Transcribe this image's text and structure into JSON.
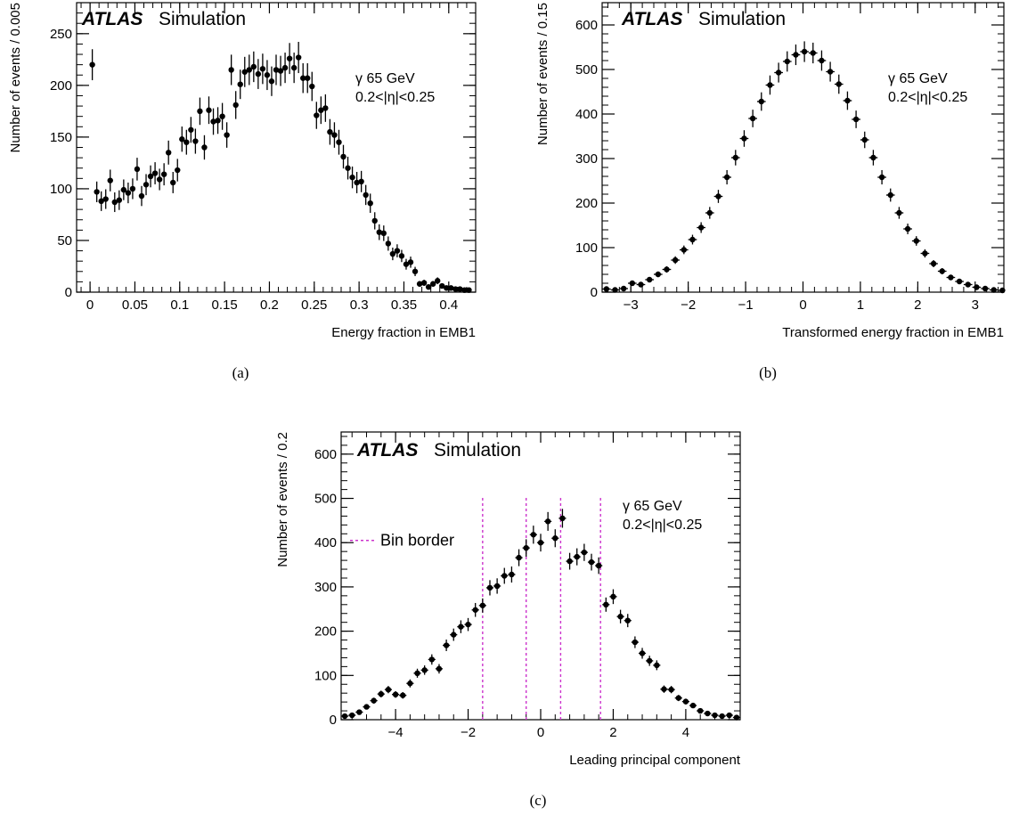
{
  "chart_data": [
    {
      "type": "scatter",
      "caption": "(a)",
      "experiment": "ATLAS",
      "experiment_suffix": "Simulation",
      "annotations": [
        "γ 65 GeV",
        "0.2<|η|<0.25"
      ],
      "xlabel": "Energy fraction in EMB1",
      "ylabel": "Number of events / 0.005",
      "xlim": [
        -0.015,
        0.43
      ],
      "ylim": [
        0,
        280
      ],
      "xticks": [
        0,
        0.05,
        0.1,
        0.15,
        0.2,
        0.25,
        0.3,
        0.35,
        0.4
      ],
      "xtick_labels": [
        "0",
        "0.05",
        "0.1",
        "0.15",
        "0.2",
        "0.25",
        "0.3",
        "0.35",
        "0.4"
      ],
      "yticks": [
        0,
        50,
        100,
        150,
        200,
        250
      ],
      "ytick_labels": [
        "0",
        "50",
        "100",
        "150",
        "200",
        "250"
      ],
      "bin_width": 0.005,
      "x": [
        0.0025,
        0.0075,
        0.0125,
        0.0175,
        0.0225,
        0.0275,
        0.0325,
        0.0375,
        0.0425,
        0.0475,
        0.0525,
        0.0575,
        0.0625,
        0.0675,
        0.0725,
        0.0775,
        0.0825,
        0.0875,
        0.0925,
        0.0975,
        0.1025,
        0.1075,
        0.1125,
        0.1175,
        0.1225,
        0.1275,
        0.1325,
        0.1375,
        0.1425,
        0.1475,
        0.1525,
        0.1575,
        0.1625,
        0.1675,
        0.1725,
        0.1775,
        0.1825,
        0.1875,
        0.1925,
        0.1975,
        0.2025,
        0.2075,
        0.2125,
        0.2175,
        0.2225,
        0.2275,
        0.2325,
        0.2375,
        0.2425,
        0.2475,
        0.2525,
        0.2575,
        0.2625,
        0.2675,
        0.2725,
        0.2775,
        0.2825,
        0.2875,
        0.2925,
        0.2975,
        0.3025,
        0.3075,
        0.3125,
        0.3175,
        0.3225,
        0.3275,
        0.3325,
        0.3375,
        0.3425,
        0.3475,
        0.3525,
        0.3575,
        0.3625,
        0.3675,
        0.3725,
        0.3775,
        0.3825,
        0.3875,
        0.3925,
        0.3975,
        0.4025,
        0.4075,
        0.4125,
        0.4175,
        0.4225
      ],
      "values": [
        220,
        97,
        88,
        90,
        108,
        87,
        89,
        99,
        96,
        100,
        119,
        93,
        104,
        112,
        115,
        109,
        114,
        135,
        106,
        118,
        148,
        145,
        157,
        146,
        175,
        140,
        176,
        165,
        166,
        170,
        152,
        215,
        181,
        201,
        213,
        215,
        218,
        211,
        216,
        210,
        204,
        215,
        214,
        217,
        226,
        217,
        227,
        207,
        207,
        199,
        171,
        176,
        178,
        155,
        152,
        145,
        131,
        120,
        111,
        106,
        107,
        94,
        86,
        69,
        58,
        57,
        47,
        37,
        40,
        35,
        27,
        29,
        20,
        8,
        9,
        5,
        8,
        11,
        6,
        4,
        4,
        3,
        3,
        2,
        2
      ],
      "errors": [
        15,
        10,
        9.5,
        9.5,
        10.5,
        9.5,
        9.5,
        10,
        10,
        10,
        11,
        9.7,
        10.2,
        10.6,
        10.7,
        10.4,
        10.7,
        11.6,
        10.3,
        10.9,
        12.2,
        12,
        12.5,
        12.1,
        13.2,
        11.8,
        13.3,
        12.8,
        12.9,
        13,
        12.3,
        14.7,
        13.5,
        14.2,
        14.6,
        14.7,
        14.8,
        14.5,
        14.7,
        14.5,
        14.3,
        14.7,
        14.6,
        14.7,
        15,
        14.7,
        15.1,
        14.4,
        14.4,
        14.1,
        13.1,
        13.3,
        13.3,
        12.4,
        12.3,
        12,
        11.4,
        11,
        10.5,
        10.3,
        10.3,
        9.7,
        9.3,
        8.3,
        7.6,
        7.5,
        6.9,
        6.1,
        6.3,
        5.9,
        5.2,
        5.4,
        4.5,
        2.8,
        3,
        2.2,
        2.8,
        3.3,
        2.4,
        2,
        2,
        1.7,
        1.7,
        1.4,
        1.4
      ]
    },
    {
      "type": "scatter",
      "caption": "(b)",
      "experiment": "ATLAS",
      "experiment_suffix": "Simulation",
      "annotations": [
        "γ 65 GeV",
        "0.2<|η|<0.25"
      ],
      "xlabel": "Transformed energy fraction in EMB1",
      "ylabel": "Number of events / 0.15",
      "xlim": [
        -3.5,
        3.5
      ],
      "ylim": [
        0,
        650
      ],
      "xticks": [
        -3,
        -2,
        -1,
        0,
        1,
        2,
        3
      ],
      "xtick_labels": [
        "−3",
        "−2",
        "−1",
        "0",
        "1",
        "2",
        "3"
      ],
      "yticks": [
        0,
        100,
        200,
        300,
        400,
        500,
        600
      ],
      "ytick_labels": [
        "0",
        "100",
        "200",
        "300",
        "400",
        "500",
        "600"
      ],
      "bin_width": 0.15,
      "x": [
        -3.425,
        -3.275,
        -3.125,
        -2.975,
        -2.825,
        -2.675,
        -2.525,
        -2.375,
        -2.225,
        -2.075,
        -1.925,
        -1.775,
        -1.625,
        -1.475,
        -1.325,
        -1.175,
        -1.025,
        -0.875,
        -0.725,
        -0.575,
        -0.425,
        -0.275,
        -0.125,
        0.025,
        0.175,
        0.325,
        0.475,
        0.625,
        0.775,
        0.925,
        1.075,
        1.225,
        1.375,
        1.525,
        1.675,
        1.825,
        1.975,
        2.125,
        2.275,
        2.425,
        2.575,
        2.725,
        2.875,
        3.025,
        3.175,
        3.325,
        3.475
      ],
      "values": [
        7,
        5,
        8,
        20,
        17,
        28,
        40,
        51,
        72,
        95,
        118,
        145,
        178,
        215,
        258,
        302,
        345,
        390,
        428,
        465,
        493,
        518,
        533,
        540,
        537,
        520,
        495,
        467,
        430,
        388,
        342,
        302,
        258,
        218,
        178,
        142,
        115,
        87,
        64,
        47,
        33,
        24,
        17,
        11,
        8,
        5,
        4
      ],
      "errors": [
        2.6,
        2.2,
        2.8,
        4.5,
        4.1,
        5.3,
        6.3,
        7.1,
        8.5,
        9.7,
        10.9,
        12,
        13.3,
        14.7,
        16.1,
        17.4,
        18.6,
        19.7,
        20.7,
        21.6,
        22.2,
        22.8,
        23.1,
        23.2,
        23.2,
        22.8,
        22.2,
        21.6,
        20.7,
        19.7,
        18.5,
        17.4,
        16.1,
        14.8,
        13.3,
        11.9,
        10.7,
        9.3,
        8,
        6.9,
        5.7,
        4.9,
        4.1,
        3.3,
        2.8,
        2.2,
        2
      ]
    },
    {
      "type": "scatter",
      "caption": "(c)",
      "experiment": "ATLAS",
      "experiment_suffix": "Simulation",
      "annotations": [
        "γ 65 GeV",
        "0.2<|η|<0.25"
      ],
      "legend": [
        {
          "label": "Bin border",
          "style": "dashed",
          "color": "#cc33cc"
        }
      ],
      "xlabel": "Leading principal component",
      "ylabel": "Number of events / 0.2",
      "xlim": [
        -5.5,
        5.5
      ],
      "ylim": [
        0,
        650
      ],
      "xticks": [
        -4,
        -2,
        0,
        2,
        4
      ],
      "xtick_labels": [
        "−4",
        "−2",
        "0",
        "2",
        "4"
      ],
      "yticks": [
        0,
        100,
        200,
        300,
        400,
        500,
        600
      ],
      "ytick_labels": [
        "0",
        "100",
        "200",
        "300",
        "400",
        "500",
        "600"
      ],
      "bin_borders": [
        -1.6,
        -0.4,
        0.55,
        1.65
      ],
      "bin_width": 0.2,
      "x": [
        -5.4,
        -5.2,
        -5.0,
        -4.8,
        -4.6,
        -4.4,
        -4.2,
        -4.0,
        -3.8,
        -3.6,
        -3.4,
        -3.2,
        -3.0,
        -2.8,
        -2.6,
        -2.4,
        -2.2,
        -2.0,
        -1.8,
        -1.6,
        -1.4,
        -1.2,
        -1.0,
        -0.8,
        -0.6,
        -0.4,
        -0.2,
        0.0,
        0.2,
        0.4,
        0.6,
        0.8,
        1.0,
        1.2,
        1.4,
        1.6,
        1.8,
        2.0,
        2.2,
        2.4,
        2.6,
        2.8,
        3.0,
        3.2,
        3.4,
        3.6,
        3.8,
        4.0,
        4.2,
        4.4,
        4.6,
        4.8,
        5.0,
        5.2,
        5.4
      ],
      "values": [
        8,
        10,
        17,
        29,
        43,
        58,
        68,
        57,
        55,
        82,
        105,
        112,
        136,
        115,
        168,
        192,
        210,
        215,
        248,
        258,
        298,
        302,
        325,
        328,
        366,
        388,
        418,
        400,
        448,
        410,
        455,
        358,
        368,
        378,
        356,
        348,
        260,
        278,
        233,
        224,
        175,
        150,
        133,
        123,
        69,
        68,
        49,
        41,
        32,
        20,
        14,
        10,
        8,
        10,
        5
      ],
      "errors": [
        2.8,
        3.2,
        4.1,
        5.4,
        6.6,
        7.6,
        8.2,
        7.5,
        7.4,
        9.1,
        10.2,
        10.6,
        11.7,
        10.7,
        13,
        13.9,
        14.5,
        14.7,
        15.7,
        16.1,
        17.3,
        17.4,
        18,
        18.1,
        19.1,
        19.7,
        20.4,
        20,
        21.2,
        20.2,
        21.3,
        18.9,
        19.2,
        19.4,
        18.9,
        18.7,
        16.1,
        16.7,
        15.3,
        15,
        13.2,
        12.2,
        11.5,
        11.1,
        8.3,
        8.2,
        7,
        6.4,
        5.7,
        4.5,
        3.7,
        3.2,
        2.8,
        3.2,
        2.2
      ]
    }
  ]
}
